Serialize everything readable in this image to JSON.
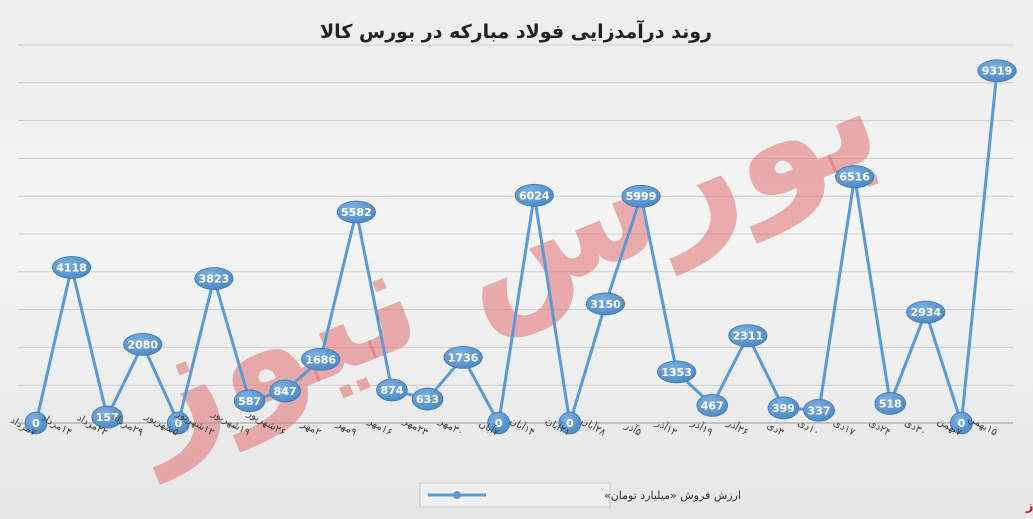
{
  "chart_data": {
    "type": "line",
    "title": "روند درآمدزایی فولاد مبارکه در بورس کالا",
    "categories": [
      "۷مرداد",
      "۱۴مرداد",
      "۲۲مرداد",
      "۲۹مرداد",
      "۵شهریور",
      "۱۲شهریور",
      "۱۹شهریور",
      "۲۶شهریور",
      "۲مهر",
      "۹مهر",
      "۱۶مهر",
      "۲۳مهر",
      "۳۰مهر",
      "۷آبان",
      "۱۴آبان",
      "۲۱آبان",
      "۲۸آبان",
      "۵آذر",
      "۱۲آذر",
      "۱۹آذر",
      "۲۶آذر",
      "۳دی",
      "۱۰دی",
      "۱۷دی",
      "۲۴دی",
      "۳۰دی",
      "۷بهمن",
      "۱۵بهمن"
    ],
    "series": [
      {
        "name": "ارزش فروش «میلیارد تومان»",
        "color": "#5b9bd5",
        "values": [
          0,
          4118,
          157,
          2080,
          0,
          3823,
          587,
          847,
          1686,
          5582,
          874,
          633,
          1736,
          0,
          6024,
          0,
          3150,
          5999,
          1353,
          467,
          2311,
          399,
          337,
          6516,
          518,
          2934,
          0,
          9319
        ]
      }
    ],
    "ylim": [
      0,
      10000
    ],
    "grid": true,
    "legend_position": "bottom",
    "watermark_text": "بورس نیوز",
    "brand_text": "بورس نیوز"
  }
}
